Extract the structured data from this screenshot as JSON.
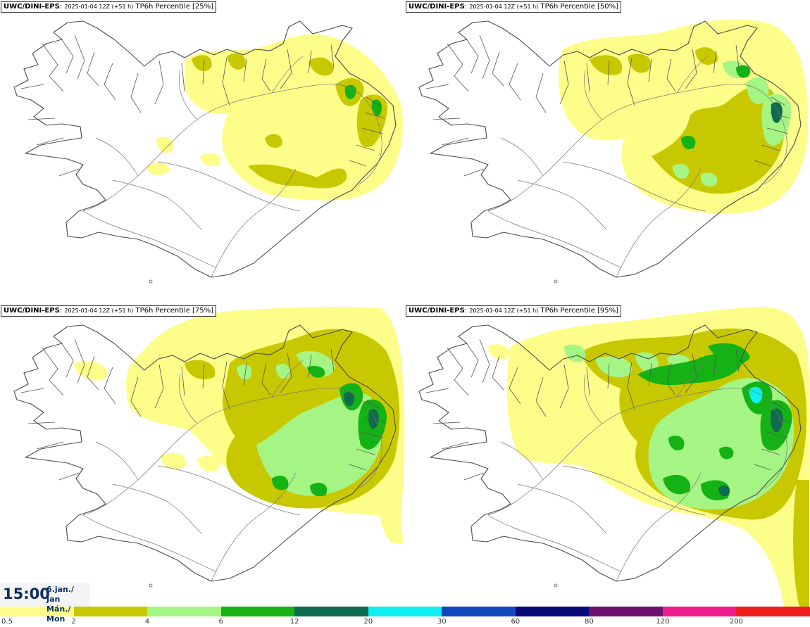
{
  "panels": [
    {
      "model": "UWC/DINI-EPS",
      "run": "2025-01-04 12Z (+51 h)",
      "product": "TP6h Percentile [25%]",
      "level": 0
    },
    {
      "model": "UWC/DINI-EPS",
      "run": "2025-01-04 12Z (+51 h)",
      "product": "TP6h Percentile [50%]",
      "level": 1
    },
    {
      "model": "UWC/DINI-EPS",
      "run": "2025-01-04 12Z (+51 h)",
      "product": "TP6h Percentile [75%]",
      "level": 2
    },
    {
      "model": "UWC/DINI-EPS",
      "run": "2025-01-04 12Z (+51 h)",
      "product": "TP6h Percentile [95%]",
      "level": 3
    }
  ],
  "valid_time": {
    "time": "15:00",
    "date_line1": "6.jan./ Jan",
    "date_line2": "Mán./ Mon"
  },
  "legend": {
    "ticks": [
      "0.5",
      "2",
      "4",
      "6",
      "12",
      "20",
      "30",
      "60",
      "80",
      "120",
      "200"
    ],
    "colors": [
      "#fdfd8a",
      "#c8c800",
      "#a5f585",
      "#14b214",
      "#0e6b4e",
      "#10f0f0",
      "#1547c0",
      "#0a0a7a",
      "#6f106f",
      "#f01e8c",
      "#f01e1e"
    ]
  }
}
